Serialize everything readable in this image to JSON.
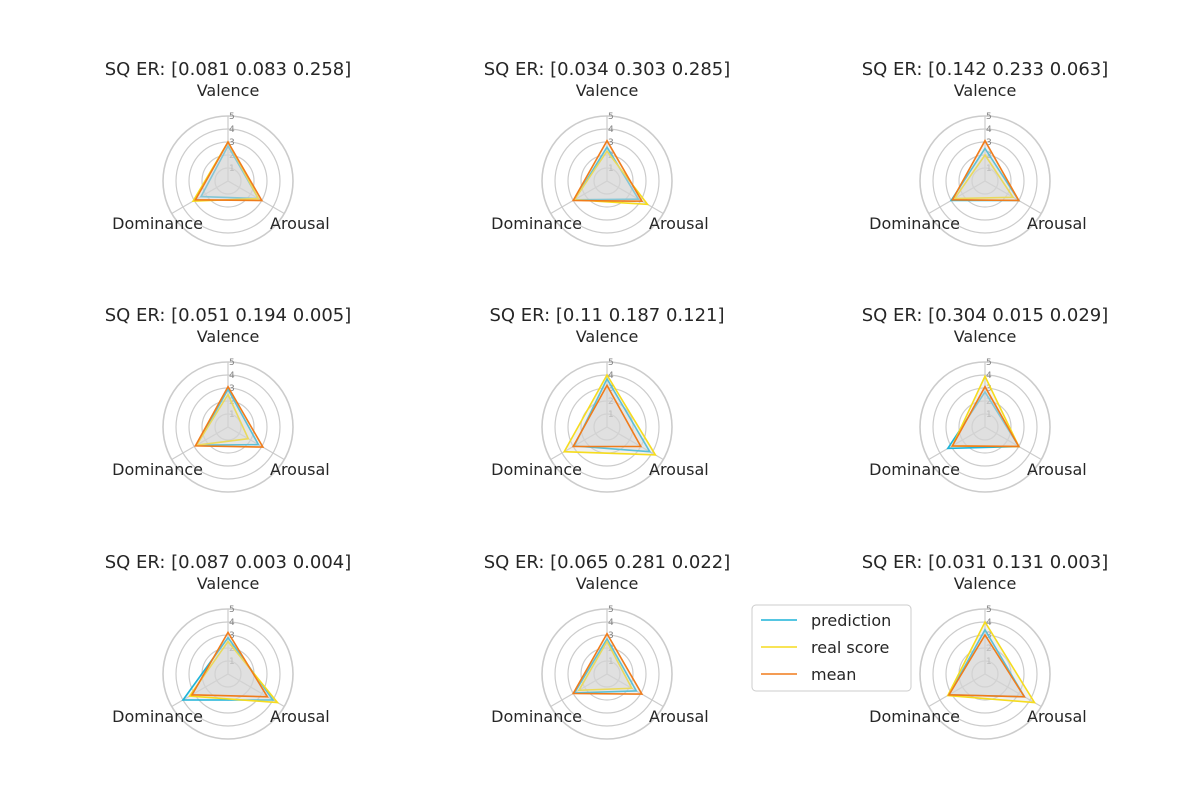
{
  "chart_data": {
    "type": "radar",
    "axes": [
      "Valence",
      "Arousal",
      "Dominance"
    ],
    "range": [
      0,
      5
    ],
    "ticks": [
      "1",
      "2",
      "3",
      "4",
      "5"
    ],
    "colors": {
      "prediction": "#1db4d8",
      "real score": "#f6dc1e",
      "mean": "#f07c1b",
      "fill": "#d3d3d3",
      "grid": "#cccccc"
    },
    "legend": {
      "placement": "between-last-two-panels",
      "entries": [
        "prediction",
        "real score",
        "mean"
      ]
    },
    "panels": [
      {
        "title": "SQ ER: [0.081 0.083 0.258]",
        "series": [
          {
            "name": "prediction",
            "values": [
              2.7,
              2.7,
              2.4
            ]
          },
          {
            "name": "real score",
            "values": [
              3.0,
              2.7,
              3.1
            ]
          },
          {
            "name": "mean",
            "values": [
              3.0,
              3.0,
              2.9
            ]
          }
        ]
      },
      {
        "title": "SQ ER: [0.034 0.303 0.285]",
        "series": [
          {
            "name": "prediction",
            "values": [
              2.6,
              2.8,
              2.9
            ]
          },
          {
            "name": "real score",
            "values": [
              2.3,
              3.6,
              2.9
            ]
          },
          {
            "name": "mean",
            "values": [
              3.1,
              3.1,
              3.0
            ]
          }
        ]
      },
      {
        "title": "SQ ER: [0.142 0.233 0.063]",
        "series": [
          {
            "name": "prediction",
            "values": [
              2.5,
              3.0,
              3.0
            ]
          },
          {
            "name": "real score",
            "values": [
              2.0,
              2.5,
              2.7
            ]
          },
          {
            "name": "mean",
            "values": [
              3.1,
              3.0,
              2.9
            ]
          }
        ]
      },
      {
        "title": "SQ ER: [0.051 0.194 0.005]",
        "series": [
          {
            "name": "prediction",
            "values": [
              2.9,
              2.7,
              2.8
            ]
          },
          {
            "name": "real score",
            "values": [
              2.5,
              1.8,
              2.8
            ]
          },
          {
            "name": "mean",
            "values": [
              3.1,
              3.1,
              2.9
            ]
          }
        ]
      },
      {
        "title": "SQ ER: [0.11  0.187 0.121]",
        "series": [
          {
            "name": "prediction",
            "values": [
              3.7,
              3.8,
              2.9
            ]
          },
          {
            "name": "real score",
            "values": [
              4.0,
              4.3,
              3.8
            ]
          },
          {
            "name": "mean",
            "values": [
              3.2,
              3.0,
              3.0
            ]
          }
        ]
      },
      {
        "title": "SQ ER: [0.304 0.015 0.029]",
        "series": [
          {
            "name": "prediction",
            "values": [
              2.7,
              3.0,
              3.3
            ]
          },
          {
            "name": "real score",
            "values": [
              3.9,
              3.0,
              2.9
            ]
          },
          {
            "name": "mean",
            "values": [
              3.1,
              3.0,
              2.9
            ]
          }
        ]
      },
      {
        "title": "SQ ER: [0.087 0.003 0.004]",
        "series": [
          {
            "name": "prediction",
            "values": [
              2.8,
              4.0,
              4.0
            ]
          },
          {
            "name": "real score",
            "values": [
              2.5,
              4.4,
              3.4
            ]
          },
          {
            "name": "mean",
            "values": [
              3.2,
              3.5,
              3.2
            ]
          }
        ]
      },
      {
        "title": "SQ ER: [0.065 0.281 0.022]",
        "series": [
          {
            "name": "prediction",
            "values": [
              2.7,
              2.6,
              2.9
            ]
          },
          {
            "name": "real score",
            "values": [
              2.5,
              2.2,
              2.5
            ]
          },
          {
            "name": "mean",
            "values": [
              3.1,
              3.1,
              3.0
            ]
          }
        ]
      },
      {
        "title": "SQ ER: [0.031 0.131 0.003]",
        "series": [
          {
            "name": "prediction",
            "values": [
              3.4,
              3.5,
              3.2
            ]
          },
          {
            "name": "real score",
            "values": [
              4.0,
              4.4,
              3.3
            ]
          },
          {
            "name": "mean",
            "values": [
              3.0,
              3.5,
              3.2
            ]
          }
        ]
      }
    ]
  }
}
